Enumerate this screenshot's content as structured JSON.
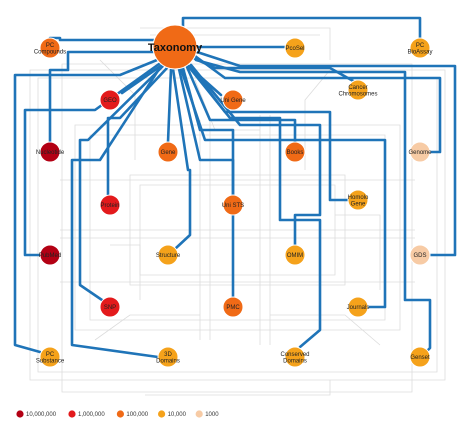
{
  "colors": {
    "bin_10000000": "#b30014",
    "bin_1000000": "#e31a1c",
    "bin_100000": "#f06a16",
    "bin_10000": "#f5a21b",
    "bin_1000": "#f7cba5",
    "link": "#1f74b8",
    "trace": "#dcdcdc"
  },
  "hub": {
    "label": "Taxonomy",
    "bin": "bin_100000"
  },
  "nodes": [
    {
      "id": "pc-compounds",
      "label": [
        "PC",
        "Compounds"
      ],
      "bin": "bin_100000"
    },
    {
      "id": "pcsell",
      "label": [
        "PcoSel"
      ],
      "bin": "bin_10000"
    },
    {
      "id": "pc-bioassay",
      "label": [
        "PC",
        "BioAssay"
      ],
      "bin": "bin_10000"
    },
    {
      "id": "geo",
      "label": [
        "GEO"
      ],
      "bin": "bin_1000000"
    },
    {
      "id": "unigene",
      "label": [
        "Uni Gene"
      ],
      "bin": "bin_100000"
    },
    {
      "id": "cancer-chromosomes",
      "label": [
        "Cancer",
        "Chromosomes"
      ],
      "bin": "bin_10000"
    },
    {
      "id": "nucleotide",
      "label": [
        "Nucleotide"
      ],
      "bin": "bin_10000000"
    },
    {
      "id": "gene",
      "label": [
        "Gene"
      ],
      "bin": "bin_100000"
    },
    {
      "id": "books",
      "label": [
        "Books"
      ],
      "bin": "bin_100000"
    },
    {
      "id": "genome",
      "label": [
        "Genome"
      ],
      "bin": "bin_1000"
    },
    {
      "id": "protein",
      "label": [
        "Protein"
      ],
      "bin": "bin_1000000"
    },
    {
      "id": "unists",
      "label": [
        "Uni STS"
      ],
      "bin": "bin_100000"
    },
    {
      "id": "homolo-gene",
      "label": [
        "Homolo",
        "Gene"
      ],
      "bin": "bin_10000"
    },
    {
      "id": "pubmed",
      "label": [
        "PubMed"
      ],
      "bin": "bin_10000000"
    },
    {
      "id": "structure",
      "label": [
        "Structure"
      ],
      "bin": "bin_10000"
    },
    {
      "id": "omim",
      "label": [
        "OMIM"
      ],
      "bin": "bin_10000"
    },
    {
      "id": "gds",
      "label": [
        "GDS"
      ],
      "bin": "bin_1000"
    },
    {
      "id": "snp",
      "label": [
        "SNP"
      ],
      "bin": "bin_1000000"
    },
    {
      "id": "pmc",
      "label": [
        "PMC"
      ],
      "bin": "bin_100000"
    },
    {
      "id": "journals",
      "label": [
        "Journals"
      ],
      "bin": "bin_10000"
    },
    {
      "id": "pc-substance",
      "label": [
        "PC",
        "Substance"
      ],
      "bin": "bin_10000"
    },
    {
      "id": "3d-domains",
      "label": [
        "3D",
        "Domains"
      ],
      "bin": "bin_10000"
    },
    {
      "id": "conserved-domains",
      "label": [
        "Conserved",
        "Domains"
      ],
      "bin": "bin_10000"
    },
    {
      "id": "genset",
      "label": [
        "Genset"
      ],
      "bin": "bin_10000"
    }
  ],
  "legend": [
    {
      "label": "10,000,000",
      "bin": "bin_10000000"
    },
    {
      "label": "1,000,000",
      "bin": "bin_1000000"
    },
    {
      "label": "100,000",
      "bin": "bin_100000"
    },
    {
      "label": "10,000",
      "bin": "bin_10000"
    },
    {
      "label": "1000",
      "bin": "bin_1000"
    }
  ]
}
